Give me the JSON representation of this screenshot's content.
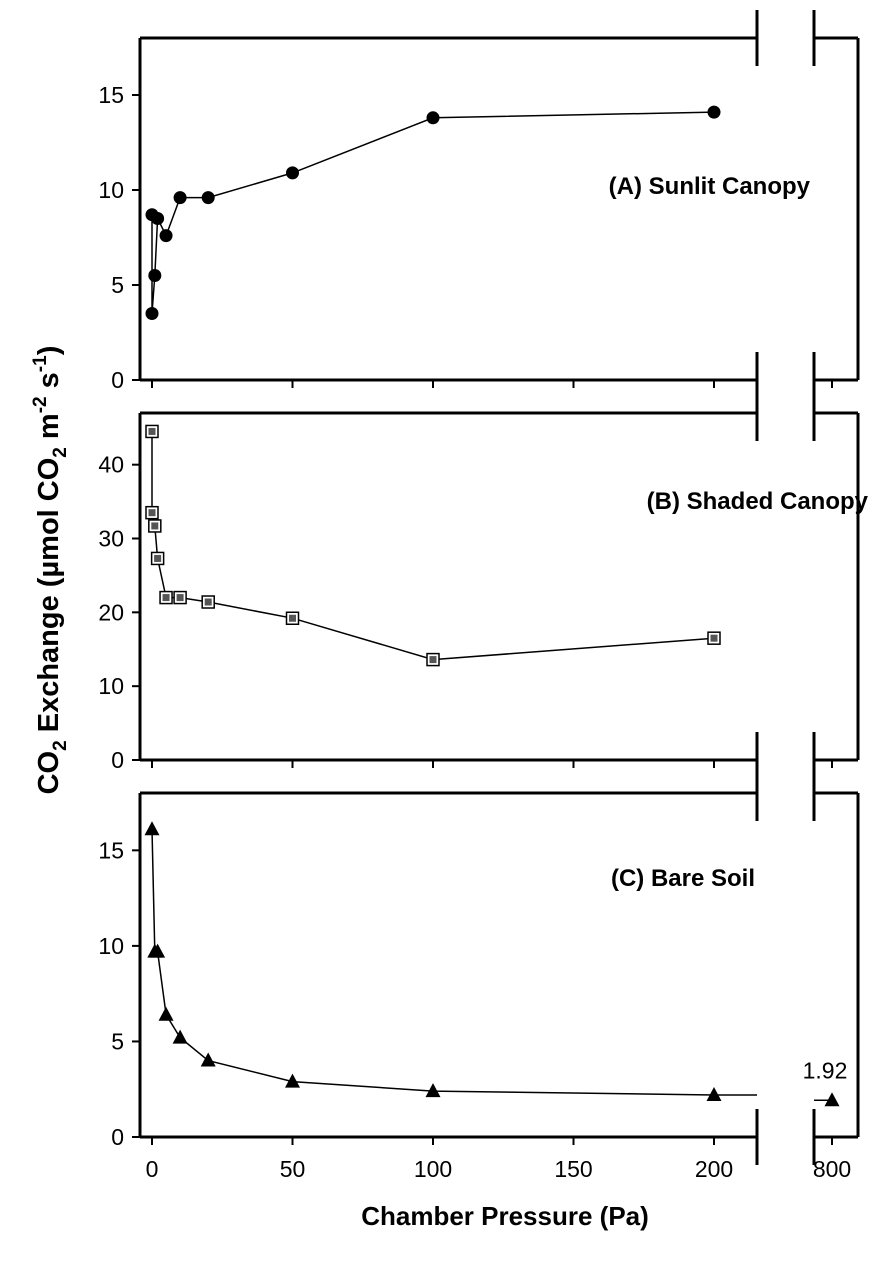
{
  "chart_data": [
    {
      "type": "line",
      "title": "(A) Sunlit Canopy",
      "ylim": [
        0,
        18
      ],
      "yticks": [
        0,
        5,
        10,
        15
      ],
      "marker": "filled-circle",
      "series": [
        {
          "x": [
            0,
            0,
            1,
            2,
            5,
            10,
            20,
            50,
            100,
            200
          ],
          "y": [
            8.7,
            3.5,
            5.5,
            8.5,
            7.6,
            9.6,
            9.6,
            10.9,
            13.8,
            14.1
          ]
        }
      ]
    },
    {
      "type": "line",
      "title": "(B) Shaded Canopy",
      "ylim": [
        0,
        47
      ],
      "yticks": [
        0,
        10,
        20,
        30,
        40
      ],
      "marker": "open-square",
      "series": [
        {
          "x": [
            0,
            0,
            1,
            2,
            5,
            10,
            20,
            50,
            100,
            200
          ],
          "y": [
            44.5,
            33.5,
            31.7,
            27.3,
            22.0,
            22.0,
            21.4,
            19.2,
            13.6,
            16.5
          ]
        }
      ]
    },
    {
      "type": "line",
      "title": "(C) Bare Soil",
      "ylim": [
        0,
        18
      ],
      "yticks": [
        0,
        5,
        10,
        15
      ],
      "marker": "filled-triangle",
      "series": [
        {
          "x": [
            0,
            1,
            2,
            5,
            10,
            20,
            50,
            100,
            200
          ],
          "y": [
            16.1,
            9.7,
            9.7,
            6.4,
            5.2,
            4.0,
            2.9,
            2.4,
            2.2
          ]
        }
      ],
      "break_point": {
        "x": 800,
        "y": 1.92
      },
      "annotations": [
        {
          "text": "1.92"
        }
      ]
    }
  ],
  "axes": {
    "xlabel": "Chamber Pressure (Pa)",
    "ylabel_parts": {
      "p1": "CO",
      "sub1": "2",
      "p2": " Exchange (µmol CO",
      "sub2": "2",
      "p3": " m",
      "sup1": "-2",
      "p4": " s",
      "sup2": "-1",
      "p5": ")"
    },
    "xticks": [
      {
        "value": 0,
        "label": "0"
      },
      {
        "value": 50,
        "label": "50"
      },
      {
        "value": 100,
        "label": "100"
      },
      {
        "value": 150,
        "label": "150"
      },
      {
        "value": 200,
        "label": "200"
      },
      {
        "value": 800,
        "label": "800"
      }
    ],
    "xlim": [
      -5,
      210
    ],
    "axis_break": true
  }
}
